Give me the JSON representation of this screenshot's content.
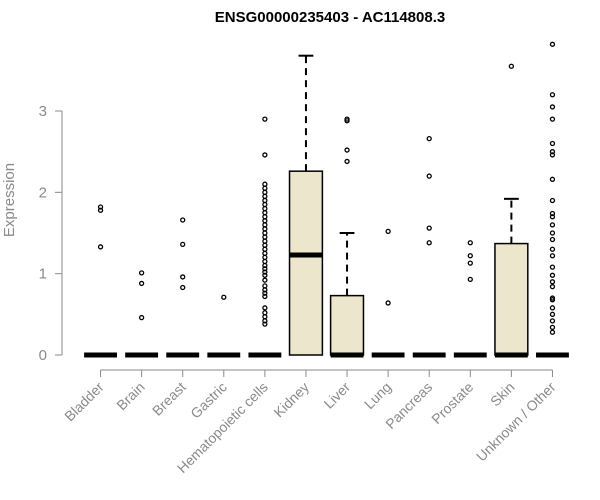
{
  "chart_data": {
    "type": "boxplot",
    "title": "ENSG00000235403 - AC114808.3",
    "ylabel": "Expression",
    "xlabel": "",
    "ylim": [
      0,
      3.9
    ],
    "yticks": [
      0,
      1,
      2,
      3
    ],
    "grid": false,
    "colors": {
      "box_fill": "#ece6cc",
      "stroke": "#000000",
      "axis": "#8a8a8a"
    },
    "categories": [
      "Bladder",
      "Brain",
      "Breast",
      "Gastric",
      "Hematopoietic cells",
      "Kidney",
      "Liver",
      "Lung",
      "Pancreas",
      "Prostate",
      "Skin",
      "Unknown / Other"
    ],
    "boxes": [
      {
        "q1": 0,
        "median": 0,
        "q3": 0,
        "whisker_low": 0,
        "whisker_high": 0,
        "outliers": [
          1.33,
          1.78,
          1.82
        ]
      },
      {
        "q1": 0,
        "median": 0,
        "q3": 0,
        "whisker_low": 0,
        "whisker_high": 0,
        "outliers": [
          0.46,
          0.88,
          1.01
        ]
      },
      {
        "q1": 0,
        "median": 0,
        "q3": 0,
        "whisker_low": 0,
        "whisker_high": 0,
        "outliers": [
          0.83,
          0.96,
          1.36,
          1.66
        ]
      },
      {
        "q1": 0,
        "median": 0,
        "q3": 0,
        "whisker_low": 0,
        "whisker_high": 0,
        "outliers": [
          0.71
        ]
      },
      {
        "q1": 0,
        "median": 0,
        "q3": 0,
        "whisker_low": 0,
        "whisker_high": 0,
        "outliers": [
          0.38,
          0.42,
          0.47,
          0.52,
          0.58,
          0.72,
          0.76,
          0.8,
          0.85,
          0.92,
          0.98,
          1.02,
          1.06,
          1.1,
          1.15,
          1.2,
          1.25,
          1.3,
          1.35,
          1.4,
          1.45,
          1.5,
          1.55,
          1.6,
          1.65,
          1.7,
          1.75,
          1.8,
          1.85,
          1.9,
          1.95,
          2.0,
          2.05,
          2.1,
          2.46,
          2.9
        ]
      },
      {
        "q1": 0,
        "median": 1.23,
        "q3": 2.26,
        "whisker_low": 0,
        "whisker_high": 3.68,
        "outliers": []
      },
      {
        "q1": 0,
        "median": 0,
        "q3": 0.73,
        "whisker_low": 0,
        "whisker_high": 1.5,
        "outliers": [
          2.38,
          2.52,
          2.88,
          2.9
        ]
      },
      {
        "q1": 0,
        "median": 0,
        "q3": 0,
        "whisker_low": 0,
        "whisker_high": 0,
        "outliers": [
          0.64,
          1.52
        ]
      },
      {
        "q1": 0,
        "median": 0,
        "q3": 0,
        "whisker_low": 0,
        "whisker_high": 0,
        "outliers": [
          1.38,
          1.56,
          2.2,
          2.66
        ]
      },
      {
        "q1": 0,
        "median": 0,
        "q3": 0,
        "whisker_low": 0,
        "whisker_high": 0,
        "outliers": [
          0.93,
          1.13,
          1.22,
          1.38
        ]
      },
      {
        "q1": 0,
        "median": 0,
        "q3": 1.37,
        "whisker_low": 0,
        "whisker_high": 1.92,
        "outliers": [
          3.55
        ]
      },
      {
        "q1": 0,
        "median": 0,
        "q3": 0,
        "whisker_low": 0,
        "whisker_high": 0,
        "outliers": [
          0.28,
          0.34,
          0.42,
          0.5,
          0.58,
          0.68,
          0.7,
          0.84,
          0.9,
          0.98,
          1.08,
          1.22,
          1.3,
          1.42,
          1.5,
          1.6,
          1.7,
          1.74,
          1.9,
          2.16,
          2.46,
          2.5,
          2.6,
          2.9,
          3.05,
          3.2,
          3.82
        ]
      }
    ]
  }
}
